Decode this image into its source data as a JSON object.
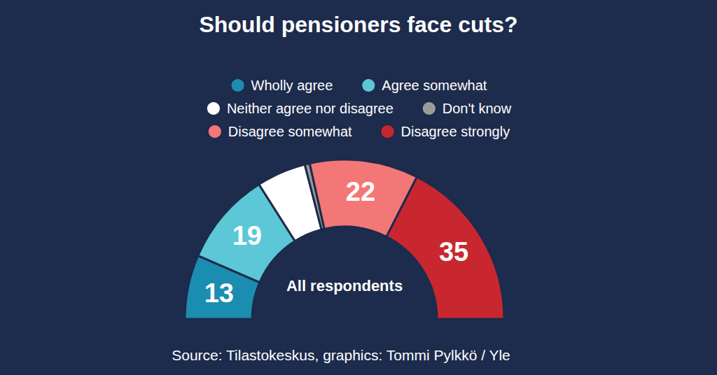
{
  "chart_data": {
    "type": "pie",
    "title": "Should pensioners face cuts?",
    "categories": [
      "Wholly agree",
      "Agree somewhat",
      "Neither agree nor disagree",
      "Don't know",
      "Disagree somewhat",
      "Disagree strongly"
    ],
    "values": [
      13,
      19,
      10,
      1,
      22,
      35
    ],
    "value_labels": [
      "13",
      "19",
      null,
      null,
      "22",
      "35"
    ],
    "colors": [
      "#1b8db0",
      "#5cc7d6",
      "#ffffff",
      "#9b9b9b",
      "#f47777",
      "#c9272f"
    ],
    "data_labels": true,
    "legend": "top",
    "annotations": [
      "All respondents",
      "Source: Tilastokeskus, graphics: Tommi Pylkkö / Yle"
    ]
  }
}
